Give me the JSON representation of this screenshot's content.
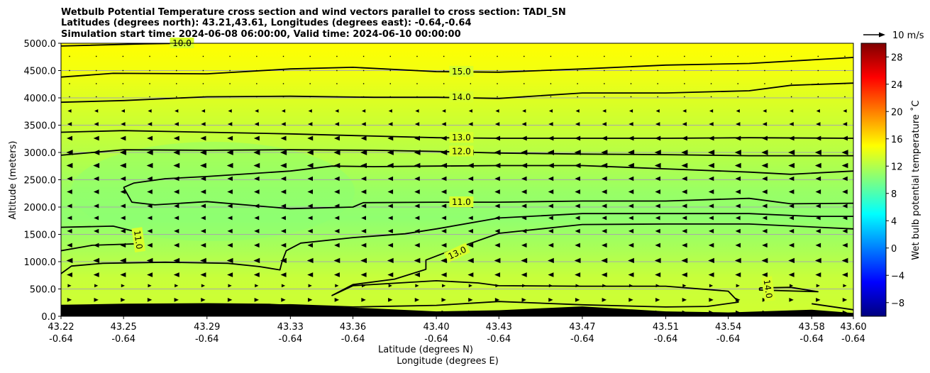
{
  "chart_data": {
    "type": "heatmap",
    "title_lines": [
      "Wetbulb Potential Temperature cross section and wind vectors parallel to cross section: TADI_SN",
      "Latitudes (degrees north): 43.21,43.61, Longitudes (degrees east): -0.64,-0.64",
      "Simulation start time: 2024-06-08 06:00:00, Valid time: 2024-06-10 00:00:00"
    ],
    "xlabel_lat": "Latitude (degrees N)",
    "xlabel_lon": "Longitude (degrees E)",
    "ylabel": "Altitude (meters)",
    "xlim": [
      43.22,
      43.6
    ],
    "ylim": [
      0,
      5000
    ],
    "x_ticks": [
      {
        "lat": 43.22,
        "lat_label": "43.22",
        "lon_label": "-0.64"
      },
      {
        "lat": 43.25,
        "lat_label": "43.25",
        "lon_label": "-0.64"
      },
      {
        "lat": 43.29,
        "lat_label": "43.29",
        "lon_label": "-0.64"
      },
      {
        "lat": 43.33,
        "lat_label": "43.33",
        "lon_label": "-0.64"
      },
      {
        "lat": 43.36,
        "lat_label": "43.36",
        "lon_label": "-0.64"
      },
      {
        "lat": 43.4,
        "lat_label": "43.40",
        "lon_label": "-0.64"
      },
      {
        "lat": 43.43,
        "lat_label": "43.43",
        "lon_label": "-0.64"
      },
      {
        "lat": 43.47,
        "lat_label": "43.47",
        "lon_label": "-0.64"
      },
      {
        "lat": 43.51,
        "lat_label": "43.51",
        "lon_label": "-0.64"
      },
      {
        "lat": 43.54,
        "lat_label": "43.54",
        "lon_label": "-0.64"
      },
      {
        "lat": 43.58,
        "lat_label": "43.58",
        "lon_label": "-0.64"
      },
      {
        "lat": 43.6,
        "lat_label": "43.60",
        "lon_label": "-0.64"
      }
    ],
    "y_ticks": [
      {
        "value": 0,
        "label": "0.0"
      },
      {
        "value": 500,
        "label": "500.0"
      },
      {
        "value": 1000,
        "label": "1000.0"
      },
      {
        "value": 1500,
        "label": "1500.0"
      },
      {
        "value": 2000,
        "label": "2000.0"
      },
      {
        "value": 2500,
        "label": "2500.0"
      },
      {
        "value": 3000,
        "label": "3000.0"
      },
      {
        "value": 3500,
        "label": "3500.0"
      },
      {
        "value": 4000,
        "label": "4000.0"
      },
      {
        "value": 4500,
        "label": "4500.0"
      },
      {
        "value": 5000,
        "label": "5000.0"
      }
    ],
    "grid": "horizontal",
    "colorbar": {
      "label": "Wet bulb potential temperature $^\\circ$C",
      "label_display": "Wet bulb potential temperature ˚C",
      "range": [
        -10,
        30
      ],
      "ticks": [
        -8,
        -4,
        0,
        4,
        8,
        12,
        16,
        20,
        24,
        28
      ],
      "tick_labels": [
        "−8",
        "−4",
        "0",
        "4",
        "8",
        "12",
        "16",
        "20",
        "24",
        "28"
      ],
      "colormap": "jet",
      "colormap_colors": [
        "#00007f",
        "#0000ff",
        "#007fff",
        "#00ffff",
        "#7fff7f",
        "#ffff00",
        "#ff7f00",
        "#ff0000",
        "#7f0000"
      ],
      "placement": "right"
    },
    "quiver_key": {
      "label": "10 m/s",
      "value_ms": 10
    },
    "field_colors": {
      "upper": "#ffff00",
      "mid_upper": "#ccff33",
      "core": "#90ff70",
      "lower": "#c8ff3c"
    },
    "contours": [
      {
        "level": 10.0,
        "label": "10.0",
        "points": [
          [
            43.22,
            4950
          ],
          [
            43.26,
            4990
          ],
          [
            43.28,
            5000
          ]
        ],
        "label_at": [
          43.278,
          5000
        ]
      },
      {
        "level": 15.0,
        "label": "15.0",
        "points": [
          [
            43.22,
            4380
          ],
          [
            43.245,
            4450
          ],
          [
            43.29,
            4440
          ],
          [
            43.33,
            4530
          ],
          [
            43.36,
            4560
          ],
          [
            43.4,
            4480
          ],
          [
            43.43,
            4470
          ],
          [
            43.47,
            4530
          ],
          [
            43.51,
            4600
          ],
          [
            43.55,
            4630
          ],
          [
            43.6,
            4740
          ]
        ],
        "label_at": [
          43.412,
          4480
        ]
      },
      {
        "level": 14.0,
        "label": "14.0",
        "points": [
          [
            43.22,
            3920
          ],
          [
            43.25,
            3950
          ],
          [
            43.29,
            4020
          ],
          [
            43.33,
            4030
          ],
          [
            43.37,
            4010
          ],
          [
            43.4,
            4010
          ],
          [
            43.43,
            3990
          ],
          [
            43.47,
            4090
          ],
          [
            43.51,
            4090
          ],
          [
            43.55,
            4130
          ],
          [
            43.57,
            4230
          ],
          [
            43.6,
            4270
          ]
        ],
        "label_at": [
          43.412,
          4010
        ]
      },
      {
        "level": 13.0,
        "label": "13.0",
        "points": [
          [
            43.22,
            3370
          ],
          [
            43.25,
            3400
          ],
          [
            43.29,
            3370
          ],
          [
            43.33,
            3340
          ],
          [
            43.37,
            3300
          ],
          [
            43.4,
            3270
          ],
          [
            43.43,
            3260
          ],
          [
            43.47,
            3260
          ],
          [
            43.51,
            3260
          ],
          [
            43.55,
            3270
          ],
          [
            43.6,
            3260
          ]
        ],
        "label_at": [
          43.412,
          3270
        ]
      },
      {
        "level": 12.0,
        "label": "12.0",
        "points": [
          [
            43.22,
            2950
          ],
          [
            43.25,
            3050
          ],
          [
            43.29,
            3040
          ],
          [
            43.33,
            3050
          ],
          [
            43.37,
            3040
          ],
          [
            43.4,
            3020
          ],
          [
            43.43,
            2990
          ],
          [
            43.47,
            2970
          ],
          [
            43.51,
            2960
          ],
          [
            43.55,
            2940
          ],
          [
            43.6,
            2940
          ]
        ],
        "label_at": [
          43.412,
          3020
        ]
      },
      {
        "level": 11.0,
        "label": "11.0",
        "points": [
          [
            43.25,
            2360
          ],
          [
            43.255,
            2440
          ],
          [
            43.27,
            2520
          ],
          [
            43.29,
            2560
          ],
          [
            43.33,
            2660
          ],
          [
            43.35,
            2750
          ],
          [
            43.37,
            2740
          ],
          [
            43.4,
            2750
          ],
          [
            43.43,
            2760
          ],
          [
            43.47,
            2760
          ],
          [
            43.51,
            2700
          ],
          [
            43.55,
            2640
          ],
          [
            43.57,
            2600
          ],
          [
            43.6,
            2660
          ]
        ],
        "label_at": null
      },
      {
        "level": 11.0,
        "label": "11.0",
        "points": [
          [
            43.25,
            2360
          ],
          [
            43.254,
            2090
          ],
          [
            43.265,
            2040
          ],
          [
            43.29,
            2100
          ],
          [
            43.33,
            1970
          ],
          [
            43.36,
            2000
          ],
          [
            43.365,
            2080
          ],
          [
            43.4,
            2090
          ],
          [
            43.43,
            2090
          ],
          [
            43.47,
            2110
          ],
          [
            43.51,
            2110
          ],
          [
            43.55,
            2160
          ],
          [
            43.57,
            2060
          ],
          [
            43.6,
            2070
          ]
        ],
        "label_at": [
          43.412,
          2090
        ]
      },
      {
        "level": 11.0,
        "label": "11.0",
        "points": [
          [
            43.22,
            1630
          ],
          [
            43.245,
            1650
          ],
          [
            43.258,
            1530
          ]
        ],
        "label_at": [
          43.257,
          1400
        ],
        "label_rotation": 82
      },
      {
        "level": 13.0,
        "label": "13.0",
        "points": [
          [
            43.22,
            780
          ],
          [
            43.225,
            920
          ],
          [
            43.24,
            970
          ],
          [
            43.27,
            990
          ],
          [
            43.3,
            970
          ],
          [
            43.315,
            910
          ],
          [
            43.325,
            850
          ],
          [
            43.326,
            1000
          ],
          [
            43.328,
            1200
          ],
          [
            43.335,
            1340
          ],
          [
            43.36,
            1440
          ],
          [
            43.385,
            1510
          ],
          [
            43.4,
            1600
          ],
          [
            43.43,
            1800
          ],
          [
            43.47,
            1880
          ],
          [
            43.51,
            1880
          ],
          [
            43.55,
            1880
          ],
          [
            43.58,
            1830
          ],
          [
            43.6,
            1830
          ]
        ],
        "label_at": null
      },
      {
        "level": 13.0,
        "label": "13.0",
        "points": [
          [
            43.22,
            1200
          ],
          [
            43.235,
            1300
          ],
          [
            43.258,
            1330
          ]
        ],
        "label_at": null
      },
      {
        "level": 13.0,
        "label": "13.0",
        "points": [
          [
            43.6,
            1600
          ],
          [
            43.55,
            1690
          ],
          [
            43.51,
            1690
          ],
          [
            43.47,
            1680
          ],
          [
            43.43,
            1520
          ],
          [
            43.41,
            1250
          ],
          [
            43.395,
            1030
          ],
          [
            43.395,
            860
          ],
          [
            43.38,
            680
          ],
          [
            43.36,
            580
          ],
          [
            43.35,
            380
          ],
          [
            43.36,
            560
          ],
          [
            43.4,
            650
          ],
          [
            43.42,
            610
          ],
          [
            43.43,
            560
          ],
          [
            43.47,
            550
          ],
          [
            43.51,
            550
          ],
          [
            43.54,
            460
          ],
          [
            43.545,
            260
          ]
        ],
        "label_at": [
          43.41,
          1160
        ],
        "label_rotation": -25
      },
      {
        "level": 14.0,
        "label": "14.0",
        "points": [
          [
            43.545,
            260
          ],
          [
            43.53,
            180
          ],
          [
            43.51,
            170
          ],
          [
            43.47,
            210
          ],
          [
            43.43,
            270
          ],
          [
            43.4,
            200
          ],
          [
            43.36,
            170
          ],
          [
            43.33,
            210
          ],
          [
            43.3,
            200
          ],
          [
            43.26,
            200
          ],
          [
            43.22,
            180
          ]
        ],
        "label_at": [
          43.559,
          500
        ],
        "label_rotation": 82
      },
      {
        "level": 14.0,
        "label": "14.0",
        "points": [
          [
            43.555,
            520
          ],
          [
            43.57,
            530
          ],
          [
            43.583,
            450
          ],
          [
            43.555,
            480
          ],
          [
            43.555,
            520
          ]
        ],
        "label_at": null
      },
      {
        "level": 14.0,
        "label": "14.0",
        "points": [
          [
            43.58,
            230
          ],
          [
            43.6,
            120
          ]
        ],
        "label_at": null
      }
    ],
    "terrain_profile": [
      [
        43.22,
        210
      ],
      [
        43.25,
        230
      ],
      [
        43.29,
        240
      ],
      [
        43.32,
        230
      ],
      [
        43.36,
        160
      ],
      [
        43.4,
        90
      ],
      [
        43.43,
        110
      ],
      [
        43.47,
        180
      ],
      [
        43.51,
        90
      ],
      [
        43.54,
        70
      ],
      [
        43.58,
        120
      ],
      [
        43.6,
        60
      ]
    ],
    "wind_vector_rows_m": [
      70,
      300,
      560,
      760,
      1020,
      1300,
      1560,
      1800,
      2020,
      2280,
      2520,
      2760,
      3000,
      3260,
      3520,
      3760,
      4020,
      4260,
      4500,
      4760
    ],
    "wind_vector_u_by_row": [
      0.6,
      0.6,
      0.3,
      -1.0,
      -1.2,
      -0.9,
      -0.8,
      -0.7,
      -0.8,
      -0.9,
      -0.9,
      -1.2,
      -1.3,
      -1.0,
      -0.6,
      -0.3,
      -0.2,
      0.1,
      0.1,
      0.2
    ]
  }
}
